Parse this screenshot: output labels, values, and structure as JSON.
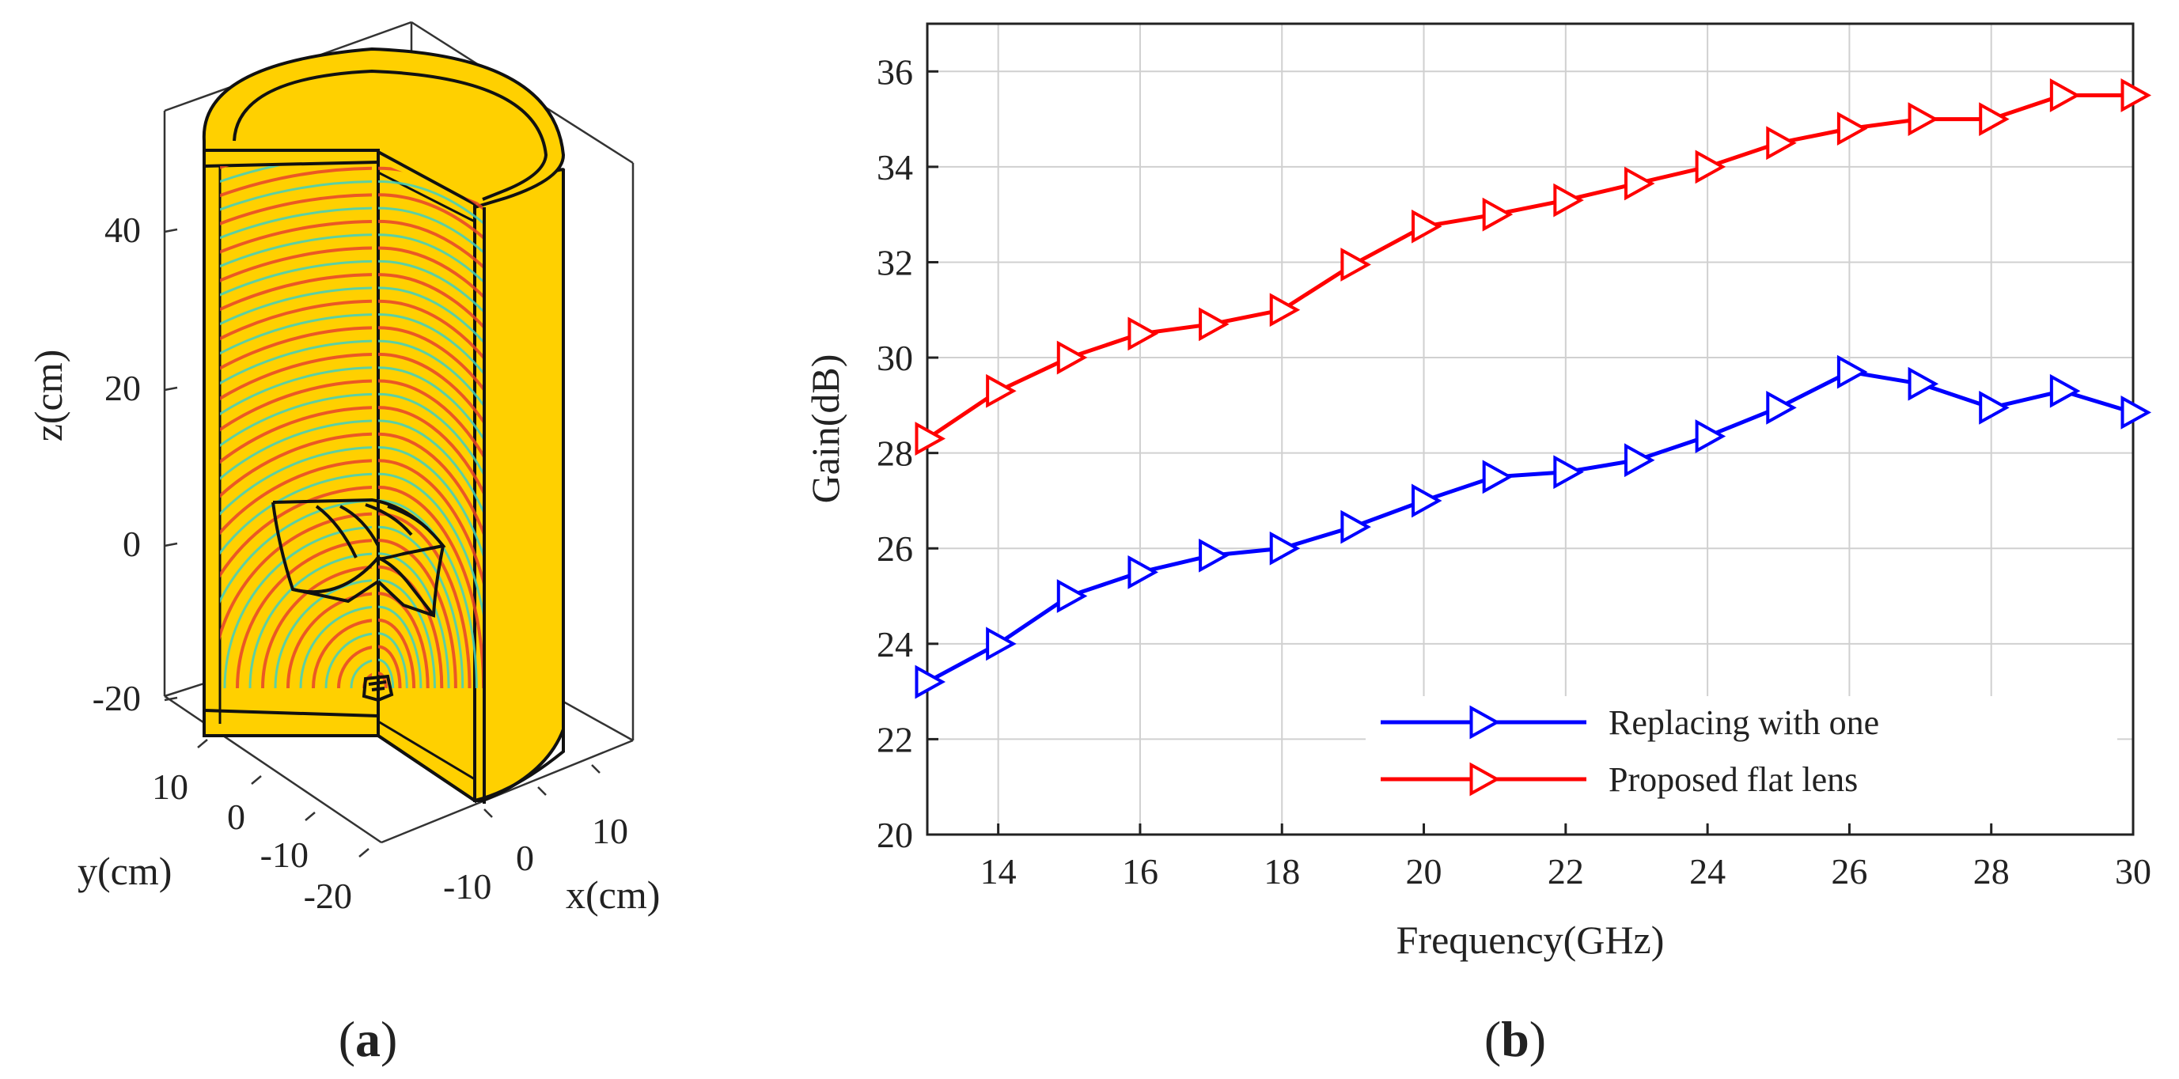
{
  "panel_a": {
    "label_open": "(",
    "label_letter": "a",
    "label_close": ")",
    "z_axis_title": "z(cm)",
    "y_axis_title": "y(cm)",
    "x_axis_title": "x(cm)",
    "z_ticks": [
      "40",
      "20",
      "0",
      "-20"
    ],
    "y_ticks": [
      "10",
      "0",
      "-10",
      "-20"
    ],
    "x_ticks": [
      "-10",
      "0",
      "10"
    ],
    "colors": {
      "body": "#ffd000",
      "wave_red": "#e8432a",
      "wave_cyan": "#3fd0c0",
      "wave_green": "#7ed957",
      "outline": "#111111"
    }
  },
  "panel_b": {
    "label_open": "(",
    "label_letter": "b",
    "label_close": ")"
  },
  "chart_data": {
    "type": "line",
    "title": "",
    "xlabel": "Frequency(GHz)",
    "ylabel": "Gain(dB)",
    "xlim": [
      13,
      30
    ],
    "ylim": [
      20,
      37
    ],
    "xticks": [
      14,
      16,
      18,
      20,
      22,
      24,
      26,
      28,
      30
    ],
    "yticks": [
      20,
      22,
      24,
      26,
      28,
      30,
      32,
      34,
      36
    ],
    "grid": true,
    "legend_position": "bottom-right",
    "x": [
      13,
      14,
      15,
      16,
      17,
      18,
      19,
      20,
      21,
      22,
      23,
      24,
      25,
      26,
      27,
      28,
      29,
      30
    ],
    "series": [
      {
        "name": "Replacing with one",
        "color": "#0000ff",
        "marker": "triangle-right",
        "values": [
          23.2,
          24.0,
          25.0,
          25.5,
          25.85,
          26.0,
          26.45,
          27.0,
          27.5,
          27.6,
          27.85,
          28.35,
          28.95,
          29.7,
          29.45,
          28.95,
          29.3,
          28.85
        ]
      },
      {
        "name": "Proposed flat lens",
        "color": "#ff0000",
        "marker": "triangle-right",
        "values": [
          28.3,
          29.3,
          30.0,
          30.5,
          30.7,
          31.0,
          31.95,
          32.75,
          33.0,
          33.3,
          33.65,
          34.0,
          34.5,
          34.8,
          35.0,
          35.0,
          35.5,
          35.5
        ]
      }
    ]
  }
}
